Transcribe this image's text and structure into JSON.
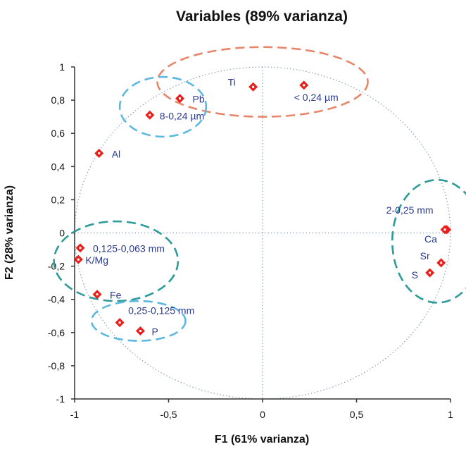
{
  "chart_data": {
    "type": "scatter",
    "title": "Variables (89% varianza)",
    "xlabel": "F1 (61% varianza)",
    "ylabel": "F2 (28% varianza)",
    "xlim": [
      -1,
      1
    ],
    "ylim": [
      -1,
      1
    ],
    "x_ticks": [
      {
        "value": -1,
        "label": "-1"
      },
      {
        "value": -0.5,
        "label": "-0,5"
      },
      {
        "value": 0,
        "label": "0"
      },
      {
        "value": 0.5,
        "label": "0,5"
      },
      {
        "value": 1,
        "label": "1"
      }
    ],
    "y_ticks": [
      {
        "value": -1,
        "label": "-1"
      },
      {
        "value": -0.8,
        "label": "-0,8"
      },
      {
        "value": -0.6,
        "label": "-0,6"
      },
      {
        "value": -0.4,
        "label": "-0,4"
      },
      {
        "value": -0.2,
        "label": "-0,2"
      },
      {
        "value": 0,
        "label": "0"
      },
      {
        "value": 0.2,
        "label": "0,2"
      },
      {
        "value": 0.4,
        "label": "0,4"
      },
      {
        "value": 0.6,
        "label": "0,6"
      },
      {
        "value": 0.8,
        "label": "0,8"
      },
      {
        "value": 1,
        "label": "1"
      }
    ],
    "unit_circle": true,
    "points": [
      {
        "x": -0.05,
        "y": 0.88,
        "label": "Ti"
      },
      {
        "x": 0.22,
        "y": 0.89,
        "label": "< 0,24 µm"
      },
      {
        "x": -0.44,
        "y": 0.81,
        "label": "Pb"
      },
      {
        "x": -0.6,
        "y": 0.71,
        "label": "8-0,24 µm"
      },
      {
        "x": -0.87,
        "y": 0.48,
        "label": "Al"
      },
      {
        "x": -0.97,
        "y": -0.09,
        "label": "0,125-0,063 mm"
      },
      {
        "x": -0.98,
        "y": -0.16,
        "label": "K/Mg"
      },
      {
        "x": -0.88,
        "y": -0.37,
        "label": "Fe"
      },
      {
        "x": -0.76,
        "y": -0.54,
        "label": "0,25-0,125 mm"
      },
      {
        "x": -0.65,
        "y": -0.59,
        "label": "P"
      },
      {
        "x": 0.98,
        "y": 0.02,
        "label": "2-0,25 mm"
      },
      {
        "x": 0.97,
        "y": 0.02,
        "label": "Ca"
      },
      {
        "x": 0.95,
        "y": -0.18,
        "label": "Sr"
      },
      {
        "x": 0.89,
        "y": -0.24,
        "label": "S"
      }
    ],
    "groups": [
      {
        "cx": 0.0,
        "cy": 0.91,
        "rx": 0.56,
        "ry": 0.21,
        "color": "#e8866c"
      },
      {
        "cx": -0.53,
        "cy": 0.76,
        "rx": 0.23,
        "ry": 0.18,
        "color": "#5bb8e0"
      },
      {
        "cx": -0.78,
        "cy": -0.17,
        "rx": 0.33,
        "ry": 0.24,
        "color": "#2e9a9a"
      },
      {
        "cx": -0.66,
        "cy": -0.53,
        "rx": 0.25,
        "ry": 0.12,
        "color": "#5bb8e0"
      },
      {
        "cx": 0.93,
        "cy": -0.05,
        "rx": 0.24,
        "ry": 0.37,
        "color": "#2e9a9a"
      }
    ],
    "grid": false,
    "colors": {
      "marker": "#e8201c",
      "label": "#2b3a8f",
      "axis": "#333333",
      "zero_lines": "#8aa0b8",
      "unit_circle": "#8aa0b8"
    }
  }
}
